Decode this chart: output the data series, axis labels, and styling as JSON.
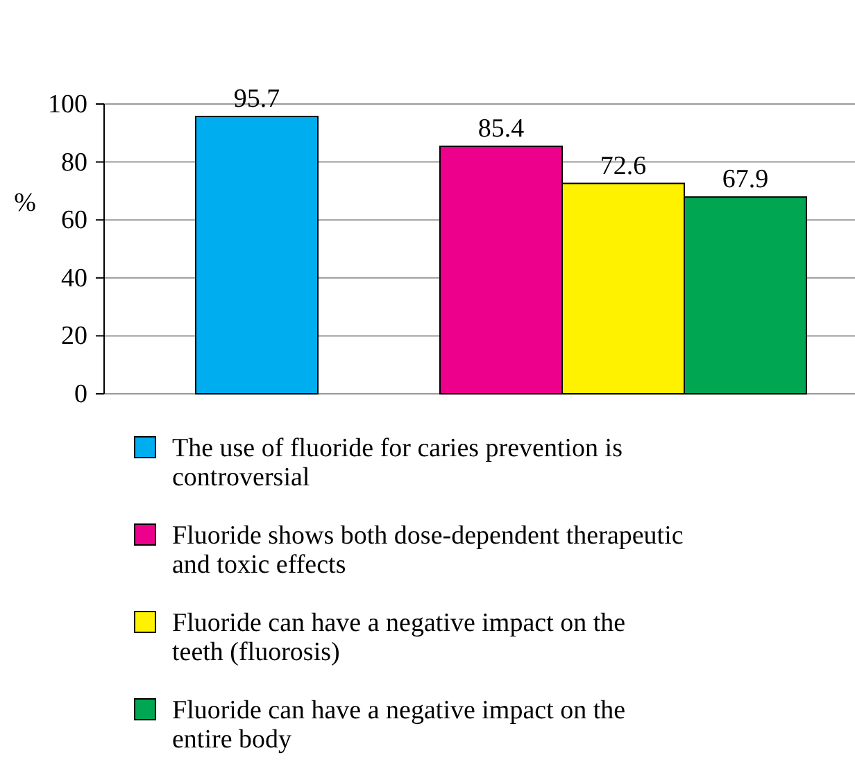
{
  "chart_data": {
    "type": "bar",
    "ylabel": "%",
    "categories": [
      null,
      null
    ],
    "ylim": [
      0,
      100
    ],
    "yticks": [
      0,
      20,
      40,
      60,
      80,
      100
    ],
    "grid": "y",
    "legend": "bottom",
    "data_labels": true,
    "tick_labels": "y",
    "series": [
      {
        "name": "The use of fluoride for caries prevention is controversial",
        "color": "#00aeef",
        "values": [
          95.7,
          null
        ]
      },
      {
        "name": "Fluoride shows both dose-dependent therapeutic and toxic effects",
        "color": "#ec008c",
        "values": [
          null,
          85.4
        ]
      },
      {
        "name": "Fluoride can have a negative impact on the teeth (fluorosis)",
        "color": "#fff200",
        "values": [
          null,
          72.6
        ]
      },
      {
        "name": "Fluoride can have a negative impact on the entire body",
        "color": "#00a651",
        "values": [
          null,
          67.9
        ]
      }
    ]
  }
}
